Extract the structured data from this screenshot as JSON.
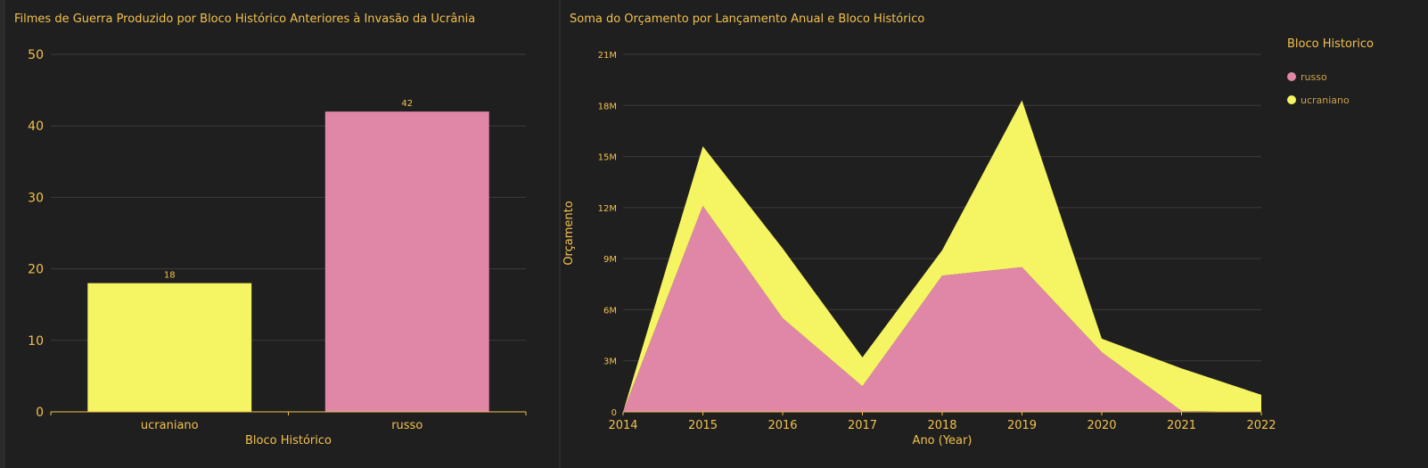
{
  "colors": {
    "ucraniano": "#f5f462",
    "russo": "#e087a8",
    "text": "#f2c14e",
    "grid": "#3c3c3c",
    "axis": "#f2c14e"
  },
  "chart_data": [
    {
      "type": "bar",
      "title": "Filmes de Guerra Produzido por Bloco Histórico Anteriores à Invasão da Ucrânia",
      "xlabel": "Bloco Histórico",
      "ylabel": "",
      "categories": [
        "ucraniano",
        "russo"
      ],
      "values": [
        18,
        42
      ],
      "value_labels": [
        "18",
        "42"
      ],
      "ylim": [
        0,
        50
      ],
      "yticks": [
        0,
        10,
        20,
        30,
        40,
        50
      ],
      "ytick_labels": [
        "0",
        "10",
        "20",
        "30",
        "40",
        "50"
      ],
      "grid": true
    },
    {
      "type": "area",
      "stacked": true,
      "title": "Soma do Orçamento por Lançamento Anual e Bloco Histórico",
      "xlabel": "Ano (Year)",
      "ylabel": "Orçamento",
      "x": [
        2014,
        2015,
        2016,
        2017,
        2018,
        2019,
        2020,
        2021,
        2022
      ],
      "xtick_labels": [
        "2014",
        "2015",
        "2016",
        "2017",
        "2018",
        "2019",
        "2020",
        "2021",
        "2022"
      ],
      "ylim": [
        0,
        21000000
      ],
      "yticks": [
        0,
        3000000,
        6000000,
        9000000,
        12000000,
        15000000,
        18000000,
        21000000
      ],
      "ytick_labels": [
        "0",
        "3M",
        "6M",
        "9M",
        "12M",
        "15M",
        "18M",
        "21M"
      ],
      "legend_title": "Bloco Historico",
      "legend_position": "right",
      "grid": true,
      "series": [
        {
          "name": "russo",
          "values": [
            0,
            12100000,
            5500000,
            1500000,
            8000000,
            8500000,
            3500000,
            50000,
            0
          ]
        },
        {
          "name": "ucraniano",
          "values": [
            0,
            3500000,
            4100000,
            1700000,
            1500000,
            9800000,
            800000,
            2500000,
            1000000
          ]
        }
      ]
    }
  ]
}
